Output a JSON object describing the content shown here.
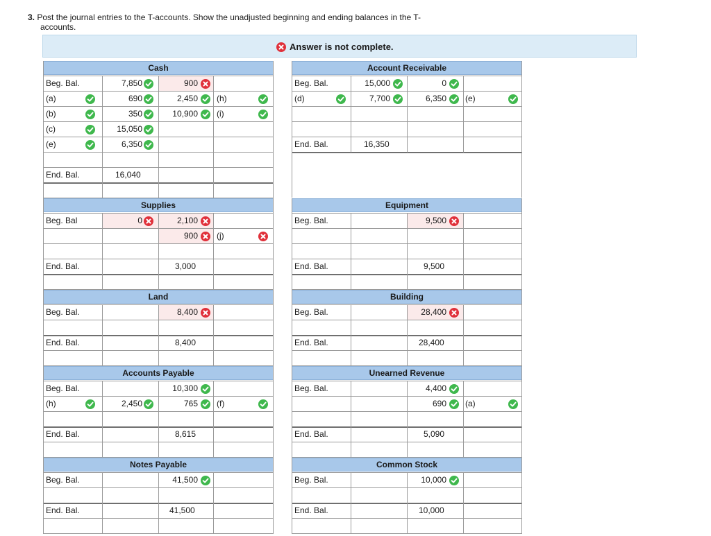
{
  "question": {
    "number": "3.",
    "line1": "Post the journal entries to the T-accounts. Show the unadjusted beginning and ending balances in the T-",
    "line2": "accounts."
  },
  "banner": {
    "text": "Answer is not complete."
  },
  "accounts": {
    "cash": {
      "title": "Cash",
      "rows": [
        "Beg. Bal.",
        "(a)",
        "(b)",
        "(c)",
        "(e)"
      ],
      "debits": [
        "7,850",
        "690",
        "350",
        "15,050",
        "6,350"
      ],
      "credits": [
        "900",
        "2,450",
        "10,900"
      ],
      "credit_refs": [
        "(h)",
        "(i)"
      ],
      "end_label": "End. Bal.",
      "end_value": "16,040"
    },
    "accounts_receivable": {
      "title": "Account Receivable",
      "rows": [
        "Beg. Bal.",
        "(d)"
      ],
      "debits": [
        "15,000",
        "7,700"
      ],
      "credits": [
        "0",
        "6,350"
      ],
      "credit_refs": [
        "(e)"
      ],
      "end_label": "End. Bal.",
      "end_value": "16,350"
    },
    "supplies": {
      "title": "Supplies",
      "beg_label": "Beg. Bal",
      "debit": "0",
      "credits": [
        "2,100",
        "900"
      ],
      "credit_ref": "(j)",
      "end_label": "End. Bal.",
      "end_value": "3,000"
    },
    "equipment": {
      "title": "Equipment",
      "beg_label": "Beg. Bal.",
      "credit": "9,500",
      "end_label": "End. Bal.",
      "end_value": "9,500"
    },
    "land": {
      "title": "Land",
      "beg_label": "Beg. Bal.",
      "credit": "8,400",
      "end_label": "End. Bal.",
      "end_value": "8,400"
    },
    "building": {
      "title": "Building",
      "beg_label": "Beg. Bal.",
      "credit": "28,400",
      "end_label": "End. Bal.",
      "end_value": "28,400"
    },
    "accounts_payable": {
      "title": "Accounts Payable",
      "rows": [
        "Beg. Bal.",
        "(h)"
      ],
      "debit": "2,450",
      "credits": [
        "10,300",
        "765"
      ],
      "credit_ref": "(f)",
      "end_label": "End. Bal.",
      "end_value": "8,615"
    },
    "unearned_revenue": {
      "title": "Unearned Revenue",
      "beg_label": "Beg. Bal.",
      "credits": [
        "4,400",
        "690"
      ],
      "credit_ref": "(a)",
      "end_label": "End. Bal.",
      "end_value": "5,090"
    },
    "notes_payable": {
      "title": "Notes Payable",
      "beg_label": "Beg. Bal.",
      "credit": "41,500",
      "end_label": "End. Bal.",
      "end_value": "41,500"
    },
    "common_stock": {
      "title": "Common Stock",
      "beg_label": "Beg. Bal.",
      "credit": "10,000",
      "end_label": "End. Bal.",
      "end_value": "10,000"
    }
  },
  "colors": {
    "header_blue": "#a8c8ea",
    "banner_bg": "#dcecf7",
    "check_green": "#3fb84d",
    "error_red": "#e0303a",
    "error_fill": "#fbeaea"
  }
}
